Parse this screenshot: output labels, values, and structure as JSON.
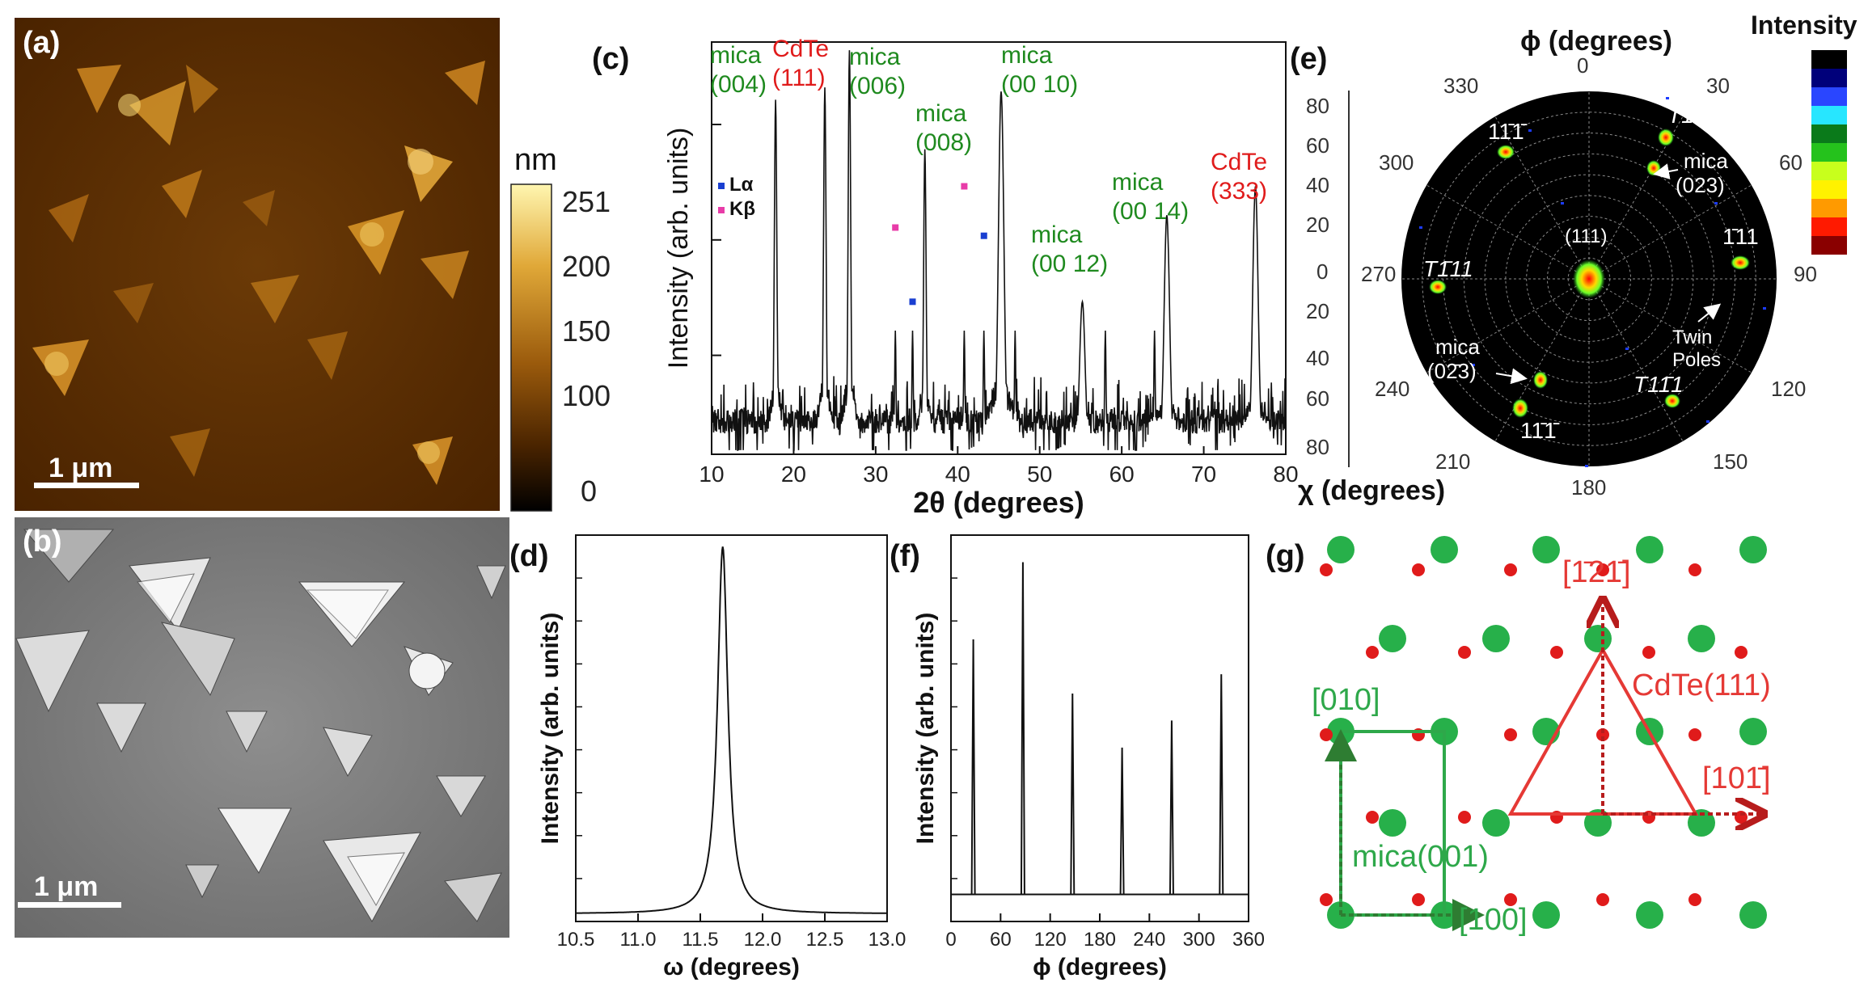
{
  "panels": {
    "a": {
      "label": "(a)",
      "colorbar_unit": "nm",
      "colorbar_ticks": [
        "251",
        "200",
        "150",
        "100",
        "0"
      ],
      "scalebar": "1 μm"
    },
    "b": {
      "label": "(b)",
      "scalebar": "1 μm"
    },
    "c": {
      "label": "(c)"
    },
    "d": {
      "label": "(d)"
    },
    "e": {
      "label": "(e)",
      "phi_title": "ϕ (degrees)",
      "chi_title": "χ (degrees)",
      "intensity_title": "Intensity",
      "chi_ticks": [
        "80",
        "60",
        "40",
        "20",
        "0",
        "20",
        "40",
        "60",
        "80"
      ],
      "phi_ticks": [
        "0",
        "30",
        "60",
        "90",
        "120",
        "150",
        "180",
        "210",
        "240",
        "270",
        "300",
        "330"
      ],
      "poles": {
        "center": "(111)",
        "p1": "11̄1̄",
        "p2": "T1̄11",
        "p3": "T111̄",
        "p4": "1̄11",
        "p5": "T1̄11",
        "p6": "T11̄1",
        "p7": "11̄1̄"
      },
      "mica_023": "mica\n(023)",
      "mica_0m23": "mica\n(02̄3)",
      "twin": "Twin\nPoles",
      "colors": [
        "#000000",
        "#00007a",
        "#2a46ff",
        "#27e6ff",
        "#0a7a1a",
        "#25c21c",
        "#c8ff1c",
        "#fff200",
        "#ff9a00",
        "#ff1a00",
        "#8a0000"
      ]
    },
    "f": {
      "label": "(f)"
    },
    "g": {
      "label": "(g)",
      "dir_m121": "[1̄21̄]",
      "dir_10m1": "[101̄]",
      "cdte": "CdTe(111)",
      "mica": "mica(001)",
      "dir_010": "[010]",
      "dir_100": "[100]"
    }
  },
  "chart_data": [
    {
      "panel": "c",
      "type": "line",
      "xlabel": "2θ (degrees)",
      "ylabel": "Intensity (arb. units)",
      "xlim": [
        10,
        80
      ],
      "xticks": [
        10,
        20,
        30,
        40,
        50,
        60,
        70,
        80
      ],
      "y_scale": "log",
      "legend": [
        {
          "name": "Lα",
          "color": "#1a3fd1"
        },
        {
          "name": "Kβ",
          "color": "#e83ca8"
        }
      ],
      "peaks": [
        {
          "x": 17.8,
          "height": 0.86,
          "label": "mica\n(004)",
          "color": "#1f8a1f"
        },
        {
          "x": 23.8,
          "height": 0.89,
          "label": "CdTe\n(111)",
          "color": "#e01b1b"
        },
        {
          "x": 26.8,
          "height": 0.98,
          "label": "mica\n(006)",
          "color": "#1f8a1f"
        },
        {
          "x": 36.0,
          "height": 0.74,
          "label": "mica\n(008)",
          "color": "#1f8a1f"
        },
        {
          "x": 45.3,
          "height": 0.88,
          "label": "mica\n(00 10)",
          "color": "#1f8a1f"
        },
        {
          "x": 55.2,
          "height": 0.37,
          "label": "mica\n(00 12)",
          "color": "#1f8a1f"
        },
        {
          "x": 65.5,
          "height": 0.58,
          "label": "mica\n(00 14)",
          "color": "#1f8a1f"
        },
        {
          "x": 76.3,
          "height": 0.65,
          "label": "CdTe\n(333)",
          "color": "#e01b1b"
        }
      ],
      "minor_peaks": [
        32.4,
        34.5,
        40.8,
        43.2,
        47.0,
        58.0,
        64.0
      ],
      "markers": [
        {
          "x": 32.4,
          "height": 0.55,
          "series": "Kβ"
        },
        {
          "x": 34.5,
          "height": 0.37,
          "series": "Lα"
        },
        {
          "x": 40.8,
          "height": 0.65,
          "series": "Kβ"
        },
        {
          "x": 43.2,
          "height": 0.53,
          "series": "Lα"
        }
      ]
    },
    {
      "panel": "d",
      "type": "line",
      "xlabel": "ω (degrees)",
      "ylabel": "Intensity (arb. units)",
      "xlim": [
        10.5,
        13.0
      ],
      "xticks": [
        10.5,
        11.0,
        11.5,
        12.0,
        12.5,
        13.0
      ],
      "peak_center": 11.68,
      "peak_hwhm": 0.05,
      "peak_height": 0.95
    },
    {
      "panel": "f",
      "type": "line",
      "xlabel": "ϕ (degrees)",
      "ylabel": "Intensity (arb. units)",
      "xlim": [
        0,
        360
      ],
      "xticks": [
        0,
        60,
        120,
        180,
        240,
        300,
        360
      ],
      "baseline": 0.07,
      "peaks": [
        {
          "x": 27,
          "height": 0.73
        },
        {
          "x": 87,
          "height": 0.93
        },
        {
          "x": 147,
          "height": 0.59
        },
        {
          "x": 207,
          "height": 0.45
        },
        {
          "x": 267,
          "height": 0.52
        },
        {
          "x": 327,
          "height": 0.64
        }
      ]
    }
  ]
}
